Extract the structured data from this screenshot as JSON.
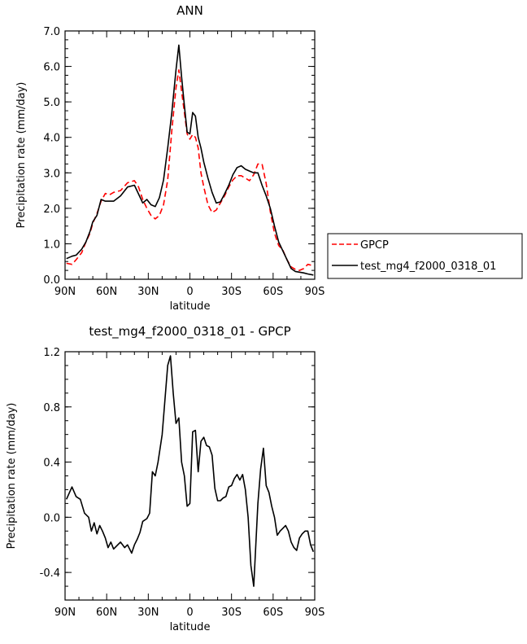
{
  "chart_data": [
    {
      "type": "line",
      "title": "ANN",
      "xlabel": "latitude",
      "ylabel": "Precipitation rate (mm/day)",
      "xlim": [
        -90,
        90
      ],
      "ylim": [
        0,
        7
      ],
      "x_direction": "north to south",
      "x_ticks": [
        -90,
        -60,
        -30,
        0,
        30,
        60,
        90
      ],
      "x_tick_labels": [
        "90N",
        "60N",
        "30N",
        "0",
        "30S",
        "60S",
        "90S"
      ],
      "y_ticks": [
        0,
        1,
        2,
        3,
        4,
        5,
        6,
        7
      ],
      "y_tick_labels": [
        "0.0",
        "1.0",
        "2.0",
        "3.0",
        "4.0",
        "5.0",
        "6.0",
        "7.0"
      ],
      "legend_position": "right",
      "series": [
        {
          "name": "GPCP",
          "color": "#ff0000",
          "dash": "dashed",
          "x": [
            -89,
            -85,
            -82,
            -78,
            -75,
            -72,
            -70,
            -67,
            -64,
            -61,
            -58,
            -55,
            -50,
            -45,
            -40,
            -37,
            -34,
            -31,
            -28,
            -25,
            -22,
            -19,
            -16,
            -13,
            -10,
            -8,
            -6,
            -4,
            -2,
            0,
            2,
            4,
            6,
            8,
            10,
            13,
            16,
            19,
            22,
            25,
            28,
            31,
            34,
            37,
            40,
            43,
            46,
            49,
            52,
            55,
            58,
            61,
            64,
            67,
            70,
            73,
            76,
            79,
            82,
            85,
            89
          ],
          "values": [
            0.45,
            0.42,
            0.55,
            0.75,
            1.05,
            1.3,
            1.58,
            1.85,
            2.2,
            2.42,
            2.38,
            2.45,
            2.5,
            2.72,
            2.78,
            2.6,
            2.25,
            2.0,
            1.8,
            1.7,
            1.8,
            2.1,
            2.8,
            4.2,
            5.4,
            5.9,
            5.3,
            4.7,
            4.1,
            3.95,
            4.08,
            4.0,
            3.7,
            3.0,
            2.6,
            2.1,
            1.88,
            1.95,
            2.15,
            2.35,
            2.6,
            2.8,
            2.92,
            2.92,
            2.85,
            2.78,
            2.95,
            3.25,
            3.25,
            2.7,
            1.9,
            1.3,
            0.95,
            0.82,
            0.55,
            0.35,
            0.28,
            0.25,
            0.3,
            0.42,
            0.38
          ]
        },
        {
          "name": "test_mg4_f2000_0318_01",
          "color": "#000000",
          "dash": "solid",
          "x": [
            -89,
            -85,
            -82,
            -78,
            -75,
            -72,
            -70,
            -67,
            -64,
            -61,
            -58,
            -55,
            -50,
            -45,
            -40,
            -37,
            -34,
            -31,
            -28,
            -25,
            -22,
            -19,
            -16,
            -13,
            -10,
            -8,
            -6,
            -4,
            -2,
            0,
            2,
            4,
            6,
            8,
            10,
            13,
            16,
            19,
            22,
            25,
            28,
            31,
            34,
            37,
            40,
            43,
            46,
            49,
            52,
            55,
            58,
            61,
            64,
            67,
            70,
            73,
            76,
            79,
            82,
            85,
            89
          ],
          "values": [
            0.58,
            0.65,
            0.68,
            0.85,
            1.05,
            1.35,
            1.62,
            1.8,
            2.25,
            2.2,
            2.2,
            2.2,
            2.35,
            2.6,
            2.65,
            2.4,
            2.15,
            2.25,
            2.1,
            2.05,
            2.3,
            2.8,
            3.7,
            4.7,
            5.9,
            6.6,
            5.7,
            4.9,
            4.15,
            4.1,
            4.7,
            4.6,
            4.0,
            3.7,
            3.3,
            2.85,
            2.45,
            2.15,
            2.18,
            2.4,
            2.65,
            2.95,
            3.15,
            3.2,
            3.1,
            3.05,
            3.0,
            3.0,
            2.65,
            2.35,
            2.0,
            1.5,
            1.05,
            0.8,
            0.55,
            0.3,
            0.22,
            0.2,
            0.18,
            0.15,
            0.12
          ]
        }
      ]
    },
    {
      "type": "line",
      "title": "test_mg4_f2000_0318_01 - GPCP",
      "xlabel": "latitude",
      "ylabel": "Precipitation rate (mm/day)",
      "xlim": [
        -90,
        90
      ],
      "ylim": [
        -0.6,
        1.2
      ],
      "x_direction": "north to south",
      "x_ticks": [
        -90,
        -60,
        -30,
        0,
        30,
        60,
        90
      ],
      "x_tick_labels": [
        "90N",
        "60N",
        "30N",
        "0",
        "30S",
        "60S",
        "90S"
      ],
      "y_ticks": [
        -0.4,
        0,
        0.4,
        0.8,
        1.2
      ],
      "y_tick_labels": [
        "-0.4",
        "0.0",
        "0.4",
        "0.8",
        "1.2"
      ],
      "series": [
        {
          "color": "#000000",
          "dash": "solid",
          "x": [
            -89,
            -85,
            -82,
            -79,
            -76,
            -73,
            -71,
            -69,
            -67,
            -65,
            -63,
            -61,
            -59,
            -57,
            -55,
            -52,
            -50,
            -47,
            -45,
            -42,
            -40,
            -38,
            -36,
            -34,
            -31,
            -29,
            -27,
            -25,
            -23,
            -20,
            -18,
            -16,
            -14,
            -12,
            -10,
            -8,
            -6,
            -4,
            -2,
            0,
            2,
            4,
            6,
            8,
            10,
            12,
            14,
            16,
            18,
            20,
            22,
            24,
            26,
            28,
            30,
            32,
            34,
            36,
            38,
            40,
            42,
            44,
            46,
            49,
            51,
            53,
            55,
            57,
            59,
            61,
            63,
            65,
            67,
            69,
            71,
            73,
            75,
            77,
            79,
            81,
            83,
            85,
            87,
            89
          ],
          "values": [
            0.13,
            0.22,
            0.15,
            0.13,
            0.03,
            0.0,
            -0.1,
            -0.04,
            -0.12,
            -0.06,
            -0.1,
            -0.15,
            -0.22,
            -0.18,
            -0.23,
            -0.2,
            -0.18,
            -0.22,
            -0.2,
            -0.26,
            -0.2,
            -0.16,
            -0.11,
            -0.03,
            -0.01,
            0.03,
            0.33,
            0.3,
            0.4,
            0.6,
            0.85,
            1.1,
            1.17,
            0.9,
            0.68,
            0.72,
            0.4,
            0.3,
            0.08,
            0.1,
            0.62,
            0.63,
            0.33,
            0.55,
            0.58,
            0.52,
            0.51,
            0.45,
            0.21,
            0.12,
            0.12,
            0.14,
            0.15,
            0.22,
            0.23,
            0.28,
            0.31,
            0.27,
            0.31,
            0.2,
            0.0,
            -0.35,
            -0.5,
            0.1,
            0.35,
            0.5,
            0.23,
            0.18,
            0.08,
            0.0,
            -0.13,
            -0.1,
            -0.08,
            -0.06,
            -0.1,
            -0.18,
            -0.22,
            -0.24,
            -0.15,
            -0.12,
            -0.1,
            -0.1,
            -0.2,
            -0.25
          ]
        }
      ]
    }
  ]
}
